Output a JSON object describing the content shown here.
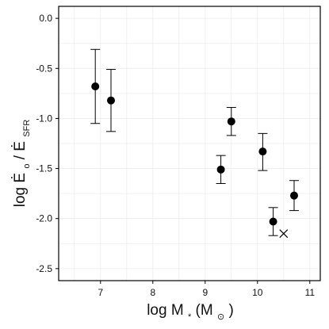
{
  "chart_data": {
    "type": "scatter",
    "title": "",
    "xlabel": {
      "base": "log M",
      "sub": "*",
      "unit_open": " (M",
      "unit_sub": "⊙",
      "unit_close": ")"
    },
    "ylabel": {
      "prefix": "log ",
      "num": "Ė",
      "num_sub": "o",
      "slash": "/",
      "den": "Ė",
      "den_sub": "SFR"
    },
    "xlim": [
      6.2,
      11.2
    ],
    "ylim": [
      -2.62,
      0.12
    ],
    "x_ticks": [
      7,
      8,
      9,
      10,
      11
    ],
    "x_tick_labels": [
      "7",
      "8",
      "9",
      "10",
      "11"
    ],
    "y_ticks": [
      0.0,
      -0.5,
      -1.0,
      -1.5,
      -2.0,
      -2.5
    ],
    "y_tick_labels": [
      "0.0",
      "-0.5",
      "-1.0",
      "-1.5",
      "-2.0",
      "-2.5"
    ],
    "grid": true,
    "points": [
      {
        "x": 6.9,
        "y": -0.68,
        "y_low": -1.05,
        "y_high": -0.31
      },
      {
        "x": 7.2,
        "y": -0.82,
        "y_low": -1.13,
        "y_high": -0.51
      },
      {
        "x": 9.3,
        "y": -1.51,
        "y_low": -1.65,
        "y_high": -1.37
      },
      {
        "x": 9.5,
        "y": -1.03,
        "y_low": -1.17,
        "y_high": -0.89
      },
      {
        "x": 10.1,
        "y": -1.33,
        "y_low": -1.52,
        "y_high": -1.15
      },
      {
        "x": 10.3,
        "y": -2.03,
        "y_low": -2.17,
        "y_high": -1.89
      },
      {
        "x": 10.7,
        "y": -1.77,
        "y_low": -1.92,
        "y_high": -1.62
      }
    ],
    "extra_markers": [
      {
        "x": 10.5,
        "y": -2.15,
        "marker": "cross"
      }
    ],
    "colors": {
      "point": "#000000",
      "grid": "#ececec",
      "axis": "#000000",
      "text": "#111111"
    }
  }
}
